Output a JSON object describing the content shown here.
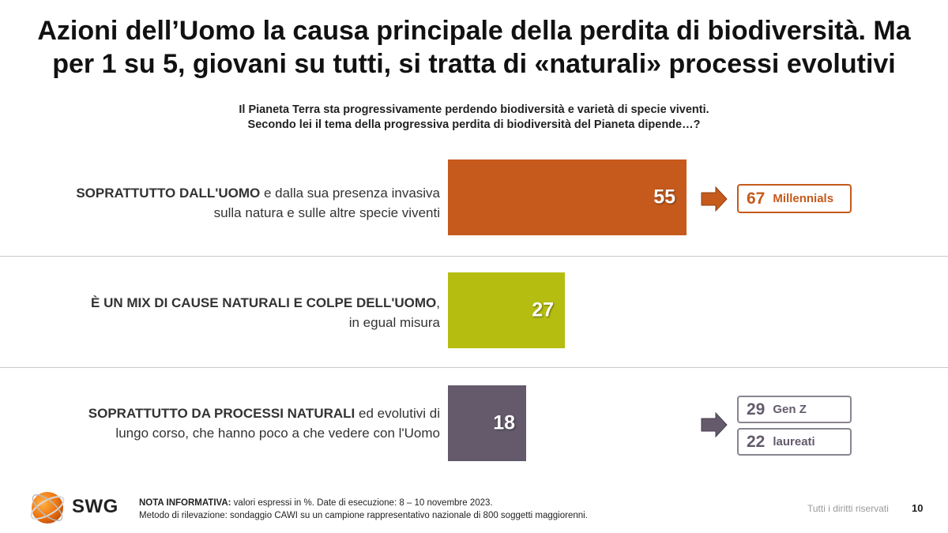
{
  "title": {
    "line1": "Azioni dell’Uomo la causa principale della perdita di biodiversità. Ma",
    "line2": "per 1 su 5, giovani su tutti, si tratta di «naturali» processi evolutivi"
  },
  "question": {
    "line1": "Il Pianeta Terra sta progressivamente perdendo biodiversità e varietà di specie viventi.",
    "line2": "Secondo lei il tema della progressiva perdita di biodiversità del Pianeta dipende…?"
  },
  "chart_data": {
    "type": "bar",
    "orientation": "horizontal",
    "unit": "%",
    "categories": [
      "SOPRATTUTTO DALL'UOMO e dalla sua presenza invasiva sulla natura e sulle altre specie viventi",
      "È UN MIX DI CAUSE NATURALI E COLPE DELL'UOMO, in egual misura",
      "SOPRATTUTTO DA PROCESSI NATURALI ed evolutivi di lungo corso, che hanno poco a che vedere con l'Uomo"
    ],
    "values": [
      55,
      27,
      18
    ],
    "colors": [
      "#c55a1c",
      "#b5bd10",
      "#645a6c"
    ],
    "value_labels": [
      "55",
      "27",
      "18"
    ]
  },
  "rows": [
    {
      "label_bold": "SOPRATTUTTO DALL'UOMO",
      "label_rest_line1": " e dalla sua presenza invasiva",
      "label_line2": "sulla natura e sulle altre specie viventi"
    },
    {
      "label_bold": "È UN MIX DI CAUSE NATURALI E COLPE DELL'UOMO",
      "label_rest_line1": ",",
      "label_line2": "in egual misura"
    },
    {
      "label_bold": "SOPRATTUTTO DA PROCESSI NATURALI",
      "label_rest_line1": " ed evolutivi di",
      "label_line2": "lungo corso, che hanno poco a che vedere con l'Uomo"
    }
  ],
  "callouts": {
    "row1": [
      {
        "value": "67",
        "label": "Millennials",
        "color": "#c55a1c"
      }
    ],
    "row3": [
      {
        "value": "29",
        "label": "Gen Z",
        "color": "#645a6c"
      },
      {
        "value": "22",
        "label": "laureati",
        "color": "#645a6c"
      }
    ]
  },
  "footer": {
    "logo_text": "SWG",
    "note_bold": "NOTA INFORMATIVA:",
    "note_line1_rest": " valori espressi in %. Date di esecuzione: 8 – 10 novembre 2023.",
    "note_line2": "Metodo di rilevazione: sondaggio CAWI su un campione rappresentativo nazionale di 800 soggetti maggiorenni.",
    "rights": "Tutti i diritti riservati",
    "page": "10"
  },
  "icons": {
    "arrow": "right-arrow-icon",
    "logo": "swg-globe-logo"
  }
}
